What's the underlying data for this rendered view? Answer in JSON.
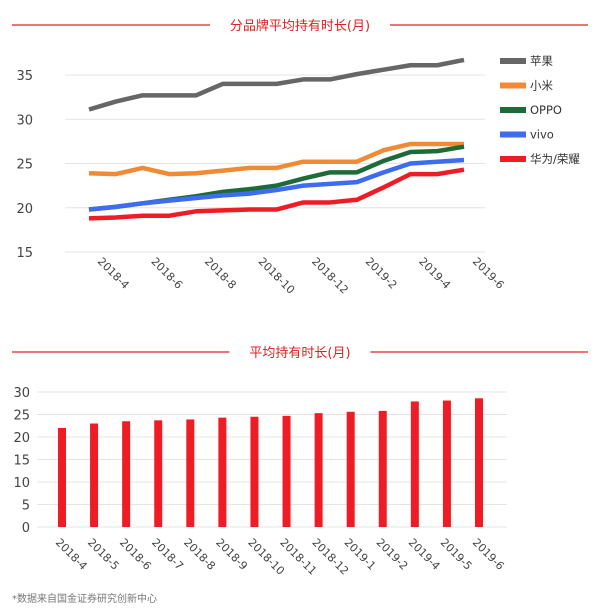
{
  "chart_data": [
    {
      "type": "line",
      "title": "分品牌平均持有时长(月)",
      "categories": [
        "2018-4",
        "2018-5",
        "2018-6",
        "2018-7",
        "2018-8",
        "2018-9",
        "2018-10",
        "2018-11",
        "2018-12",
        "2019-1",
        "2019-2",
        "2019-3",
        "2019-4",
        "2019-5",
        "2019-6"
      ],
      "tick_labels": [
        "2018-4",
        "2018-6",
        "2018-8",
        "2018-10",
        "2018-12",
        "2019-2",
        "2019-4",
        "2019-6"
      ],
      "yticks": [
        15,
        20,
        25,
        30,
        35
      ],
      "ylim": [
        15,
        35
      ],
      "grid": true,
      "legend": "right",
      "series": [
        {
          "name": "苹果",
          "color": "#666666",
          "values": [
            31.1,
            32.0,
            32.7,
            32.7,
            32.7,
            34.0,
            34.0,
            34.0,
            34.5,
            34.5,
            35.1,
            35.6,
            36.1,
            36.1,
            36.7
          ]
        },
        {
          "name": "小米",
          "color": "#f08a35",
          "values": [
            23.9,
            23.8,
            24.5,
            23.8,
            23.9,
            24.2,
            24.5,
            24.5,
            25.2,
            25.2,
            25.2,
            26.5,
            27.2,
            27.2,
            27.2
          ]
        },
        {
          "name": "OPPO",
          "color": "#1e6b3a",
          "values": [
            19.8,
            20.1,
            20.5,
            20.9,
            21.3,
            21.8,
            22.1,
            22.5,
            23.3,
            24.0,
            24.0,
            25.3,
            26.3,
            26.4,
            26.9
          ]
        },
        {
          "name": "vivo",
          "color": "#3d6cf0",
          "values": [
            19.8,
            20.1,
            20.5,
            20.8,
            21.1,
            21.4,
            21.6,
            22.0,
            22.5,
            22.7,
            22.9,
            24.0,
            25.0,
            25.2,
            25.4
          ]
        },
        {
          "name": "华为/荣耀",
          "color": "#ee1c25",
          "values": [
            18.8,
            18.9,
            19.1,
            19.1,
            19.6,
            19.7,
            19.8,
            19.8,
            20.6,
            20.6,
            20.9,
            22.3,
            23.8,
            23.8,
            24.3
          ]
        }
      ]
    },
    {
      "type": "bar",
      "title": "平均持有时长(月)",
      "categories": [
        "2018-4",
        "2018-5",
        "2018-6",
        "2018-7",
        "2018-8",
        "2018-9",
        "2018-10",
        "2018-11",
        "2018-12",
        "2019-1",
        "2019-2",
        "2019-4",
        "2019-5",
        "2019-6"
      ],
      "values": [
        22.0,
        23.0,
        23.5,
        23.7,
        23.9,
        24.3,
        24.5,
        24.7,
        25.3,
        25.6,
        25.8,
        27.9,
        28.1,
        28.6
      ],
      "yticks": [
        0,
        5,
        10,
        15,
        20,
        25,
        30
      ],
      "ylim": [
        0,
        30
      ],
      "grid": true,
      "color": "#ee1c25"
    }
  ],
  "footnote": "*数据来自国金证券研究创新中心",
  "accent": "#e02020"
}
